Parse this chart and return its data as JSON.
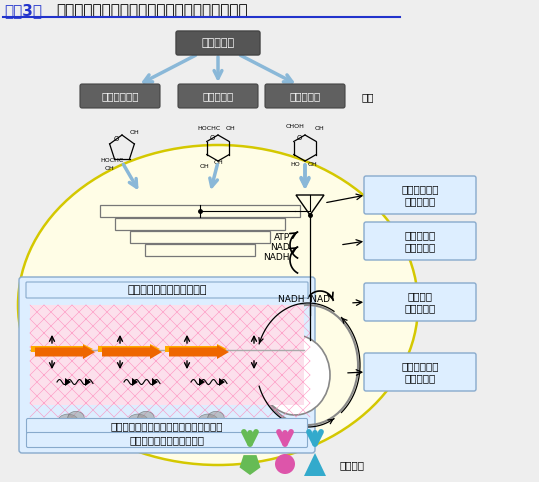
{
  "title_bracket": "（図3）",
  "title_text": "システムバイオロジーを駆使した微生物の創製",
  "bg_color": "#eeeeee",
  "cell_color": "#fffde6",
  "cell_border": "#d4c800",
  "label_biomass": "バイオマス",
  "label_arabinose": "アラビノース",
  "label_xylose": "キシロース",
  "label_glucose": "グルコース",
  "label_sugars": "糖類",
  "label_gene_network": "遠伝子ネットワークの解析",
  "label_life": "細胞内生体物質の消長（ライフ）の解析",
  "label_division": "細胞複製メカニズムの解析",
  "label_sugar_import": "糖類取り込み\n機構の解析",
  "label_sugar_metabolism": "糖代謝調節\n機構の解析",
  "label_redox": "酸化還元\n状態の解析",
  "label_export": "代謝産物排出\n機構の解析",
  "label_metabolites": "代謝産物",
  "label_atp": "ATP",
  "label_nad": "NAD",
  "label_nadh": "NADH",
  "label_nadh_nad": "NADH  NAD",
  "box_face": "#ddeeff",
  "box_edge": "#88aacc",
  "biomass_dark": "#555555",
  "sugar_dark": "#666666",
  "blue_arrow": "#8ab8d8",
  "green_arrow": "#66bb55",
  "pink_arrow": "#dd55aa",
  "teal_arrow": "#33aacc",
  "orange1": "#ee6600",
  "orange2": "#ffaa00",
  "gene_pink_bg": "#fce0ec"
}
